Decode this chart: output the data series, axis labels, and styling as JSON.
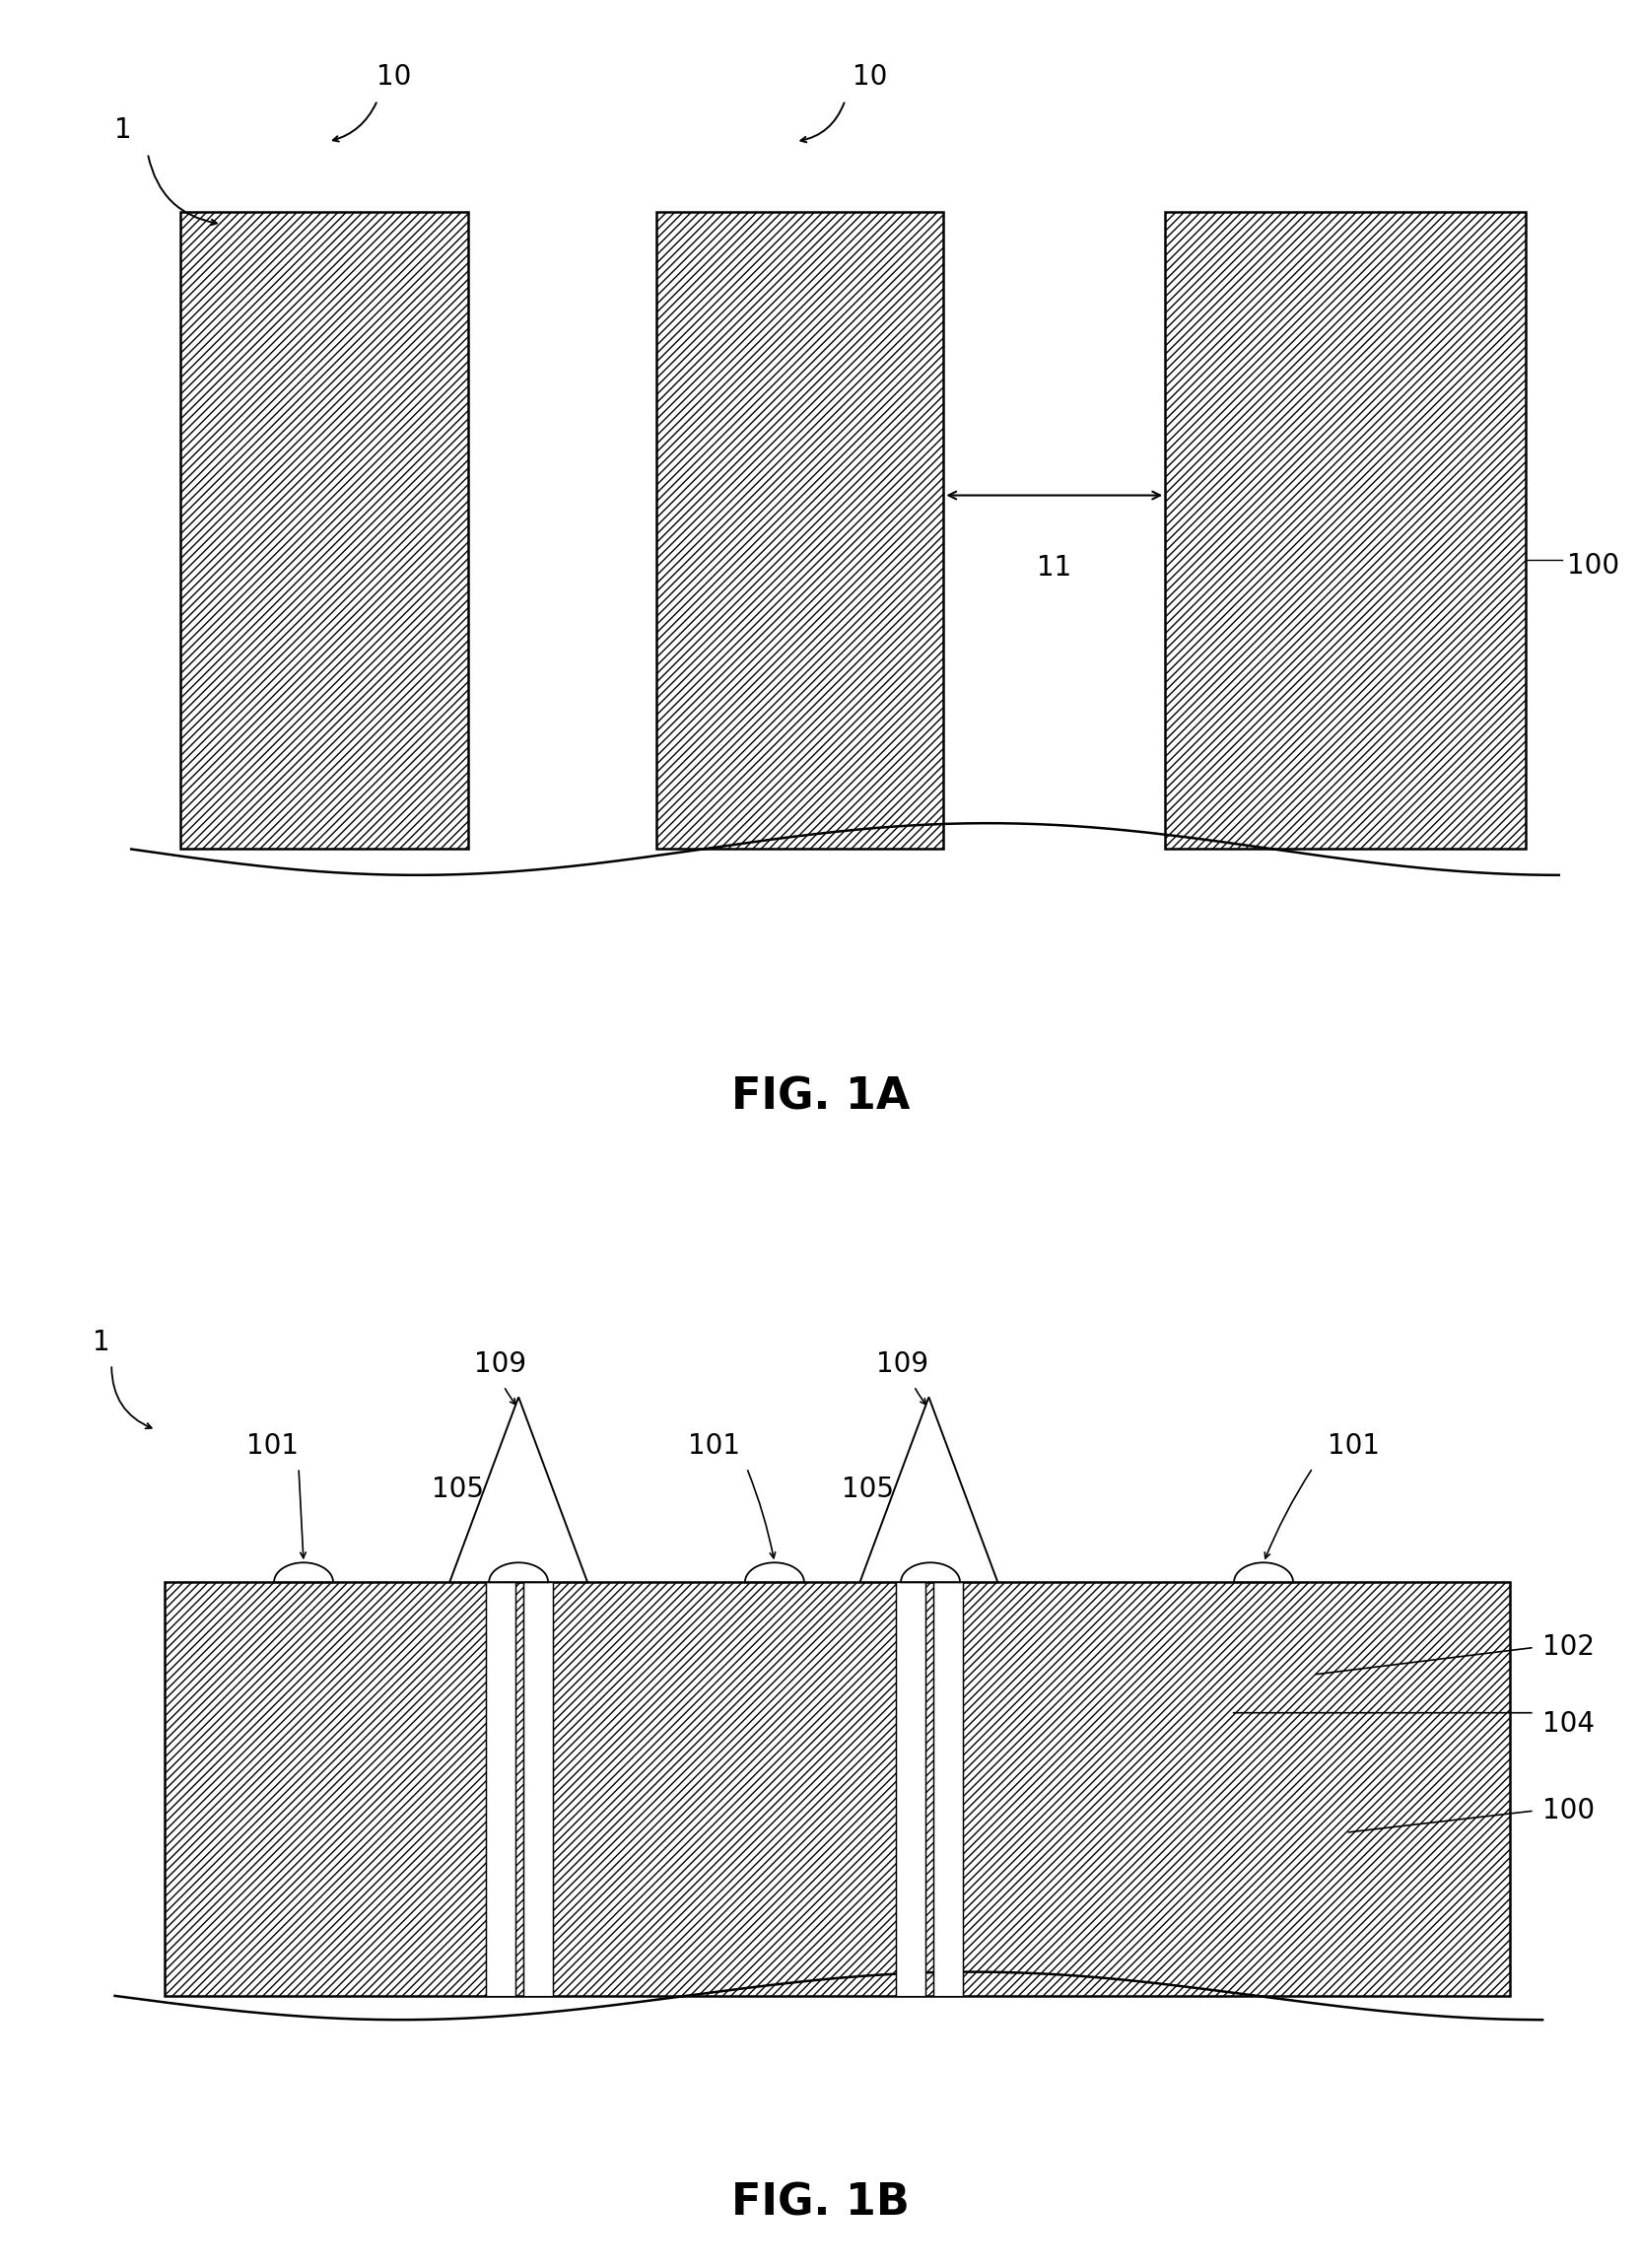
{
  "bg_color": "#ffffff",
  "fig_width": 16.65,
  "fig_height": 23.01,
  "fig1a_label": "FIG. 1A",
  "fig1b_label": "FIG. 1B",
  "label_fontsize": 32,
  "annot_fontsize": 20,
  "lw": 1.8
}
